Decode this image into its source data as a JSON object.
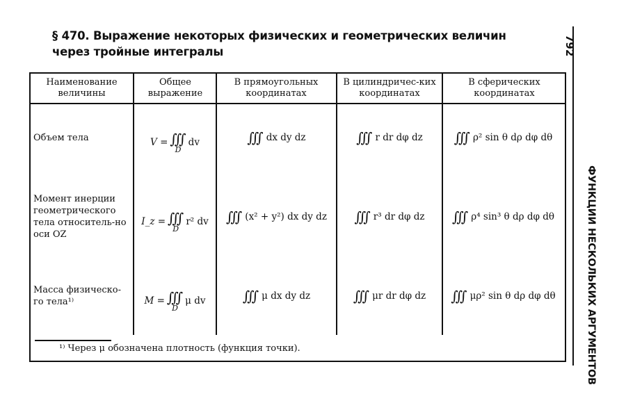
{
  "header": {
    "title_line1": "§ 470. Выражение некоторых физических и геометрических величин",
    "title_line2": "через тройные интегралы",
    "page_number": "792",
    "running_head": "ФУНКЦИИ НЕСКОЛЬКИХ АРГУМЕНТОВ"
  },
  "table": {
    "columns": [
      "Наименование величины",
      "Общее выражение",
      "В прямоугольных координатах",
      "В цилиндричес-ких координатах",
      "В сферических координатах"
    ],
    "integral": "∫∫∫",
    "domain": "D",
    "rows": [
      {
        "name": "Объем тела",
        "lhs": "V =",
        "integrand": "dv",
        "rect": "dx dy dz",
        "cyl": "r dr dφ dz",
        "sph": "ρ² sin θ dρ dφ dθ"
      },
      {
        "name": "Момент инерции геометрического тела относитель-но оси OZ",
        "lhs": "I_z =",
        "integrand": "r² dv",
        "rect": "(x² + y²) dx dy dz",
        "cyl": "r³ dr dφ dz",
        "sph": "ρ⁴ sin³ θ dρ dφ dθ"
      },
      {
        "name": "Масса физическо-го тела¹⁾",
        "lhs": "M =",
        "integrand": "μ dv",
        "rect": "μ dx dy dz",
        "cyl": "μr dr dφ dz",
        "sph": "μρ² sin θ dρ dφ dθ"
      }
    ]
  },
  "footnote": "¹⁾ Через μ обозначена плотность (функция точки)."
}
